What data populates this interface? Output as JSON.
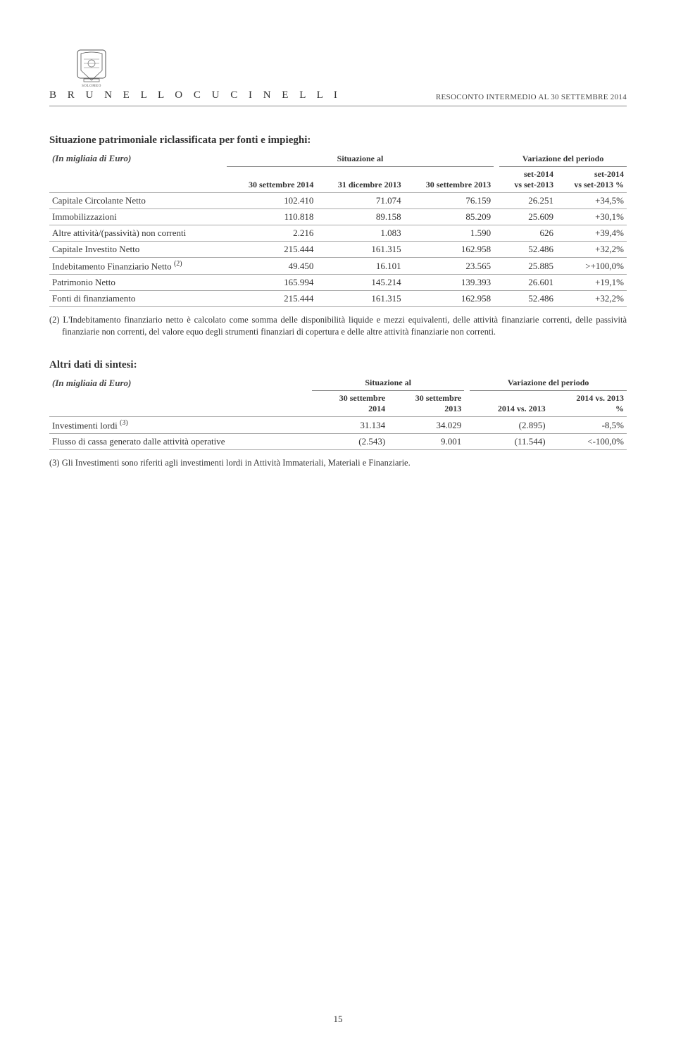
{
  "header": {
    "brand": "B R U N E L L O   C U C I N E L L I",
    "logo_caption": "SOLOMEO",
    "report_title": "RESOCONTO INTERMEDIO AL 30 SETTEMBRE 2014"
  },
  "table1": {
    "title": "Situazione patrimoniale riclassificata per fonti e impieghi:",
    "unit": "(In migliaia di Euro)",
    "group_headers": {
      "g1": "Situazione al",
      "g2": "Variazione del periodo"
    },
    "columns": {
      "c1": "30 settembre 2014",
      "c2": "31 dicembre 2013",
      "c3": "30 settembre 2013",
      "c4a": "set-2014",
      "c4b": "vs set-2013",
      "c5a": "set-2014",
      "c5b": "vs set-2013 %"
    },
    "rows": [
      {
        "label": "Capitale Circolante Netto",
        "v1": "102.410",
        "v2": "71.074",
        "v3": "76.159",
        "v4": "26.251",
        "v5": "+34,5%",
        "bold": false
      },
      {
        "label": "Immobilizzazioni",
        "v1": "110.818",
        "v2": "89.158",
        "v3": "85.209",
        "v4": "25.609",
        "v5": "+30,1%",
        "bold": false
      },
      {
        "label": "Altre attività/(passività) non correnti",
        "v1": "2.216",
        "v2": "1.083",
        "v3": "1.590",
        "v4": "626",
        "v5": "+39,4%",
        "bold": false
      },
      {
        "label": "Capitale Investito Netto",
        "v1": "215.444",
        "v2": "161.315",
        "v3": "162.958",
        "v4": "52.486",
        "v5": "+32,2%",
        "bold": true
      },
      {
        "label": "Indebitamento Finanziario Netto (2)",
        "sup": "(2)",
        "base": "Indebitamento Finanziario Netto ",
        "v1": "49.450",
        "v2": "16.101",
        "v3": "23.565",
        "v4": "25.885",
        "v5": ">+100,0%",
        "bold": false
      },
      {
        "label": "Patrimonio Netto",
        "v1": "165.994",
        "v2": "145.214",
        "v3": "139.393",
        "v4": "26.601",
        "v5": "+19,1%",
        "bold": false
      },
      {
        "label": "Fonti di finanziamento",
        "v1": "215.444",
        "v2": "161.315",
        "v3": "162.958",
        "v4": "52.486",
        "v5": "+32,2%",
        "bold": true
      }
    ],
    "footnote": "(2) L'Indebitamento finanziario netto è calcolato come somma delle disponibilità liquide e mezzi equivalenti, delle attività finanziarie correnti, delle passività finanziarie non correnti, del valore equo degli strumenti finanziari di copertura e delle altre attività finanziarie non correnti."
  },
  "table2": {
    "title": "Altri dati di sintesi:",
    "unit": "(In migliaia di Euro)",
    "group_headers": {
      "g1": "Situazione al",
      "g2": "Variazione del periodo"
    },
    "columns": {
      "c1a": "30 settembre",
      "c1b": "2014",
      "c2a": "30 settembre",
      "c2b": "2013",
      "c3": "2014 vs. 2013",
      "c4a": "2014 vs. 2013",
      "c4b": "%"
    },
    "rows": [
      {
        "base": "Investimenti lordi ",
        "sup": "(3)",
        "v1": "31.134",
        "v2": "34.029",
        "v3": "(2.895)",
        "v4": "-8,5%"
      },
      {
        "base": "Flusso di cassa generato dalle attività operative",
        "sup": "",
        "v1": "(2.543)",
        "v2": "9.001",
        "v3": "(11.544)",
        "v4": "<-100,0%"
      }
    ],
    "footnote": "(3) Gli Investimenti sono riferiti agli investimenti lordi in Attività Immateriali, Materiali e Finanziarie."
  },
  "page_number": "15",
  "colors": {
    "text": "#333333",
    "rule": "#888888",
    "light_rule": "#aaaaaa",
    "bg": "#ffffff"
  }
}
